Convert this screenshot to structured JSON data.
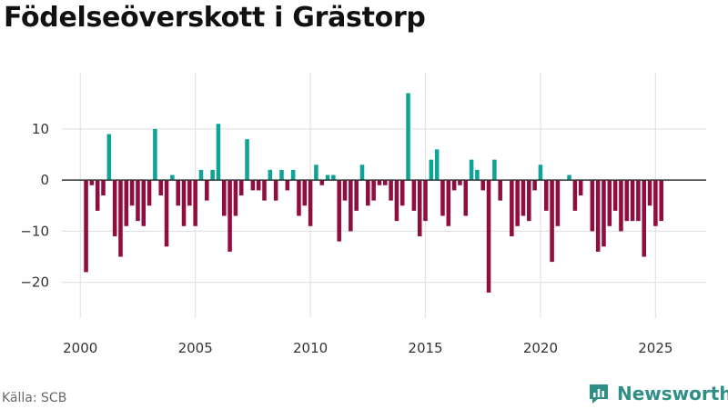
{
  "title": "Födelseöverskott i Grästorp",
  "source": "Källa: SCB",
  "brand": {
    "name": "Newsworthy",
    "icon": "newsworthy-logo-icon"
  },
  "colors": {
    "positive": "#0fa397",
    "negative": "#910d3f",
    "brand": "#2f8f86",
    "grid": "#e4e4e4",
    "zero": "#333333"
  },
  "chart_data": {
    "type": "bar",
    "title": "Födelseöverskott i Grästorp",
    "xlabel": "",
    "ylabel": "",
    "xlim": [
      1999.2,
      2027.2
    ],
    "ylim": [
      -27,
      21
    ],
    "yticks": [
      -20,
      -10,
      0,
      10
    ],
    "ytick_labels": [
      "−20",
      "−10",
      "0",
      "10"
    ],
    "xticks": [
      2000,
      2005,
      2010,
      2015,
      2020,
      2025
    ],
    "xtick_labels": [
      "2000",
      "2005",
      "2010",
      "2015",
      "2020",
      "2025"
    ],
    "frequency": "quarterly",
    "start": 2000.25,
    "step": 0.25,
    "values": [
      -18,
      -1,
      -6,
      -3,
      9,
      -11,
      -15,
      -9,
      -5,
      -8,
      -9,
      -5,
      10,
      -3,
      -13,
      1,
      -5,
      -9,
      -5,
      -9,
      2,
      -4,
      2,
      11,
      -7,
      -14,
      -7,
      -3,
      8,
      -2,
      -2,
      -4,
      2,
      -4,
      2,
      -2,
      2,
      -7,
      -5,
      -9,
      3,
      -1,
      1,
      1,
      -12,
      -4,
      -10,
      -6,
      3,
      -5,
      -4,
      -1,
      -1,
      -4,
      -8,
      -5,
      17,
      -6,
      -11,
      -8,
      4,
      6,
      -7,
      -9,
      -2,
      -1,
      -7,
      4,
      2,
      -2,
      -22,
      4,
      -4,
      0,
      -11,
      -9,
      -7,
      -8,
      -2,
      3,
      -6,
      -16,
      -9,
      0,
      1,
      -6,
      -3,
      0,
      -10,
      -14,
      -13,
      -9,
      -6,
      -10,
      -8,
      -8,
      -8,
      -15,
      -5,
      -9,
      -8
    ]
  }
}
